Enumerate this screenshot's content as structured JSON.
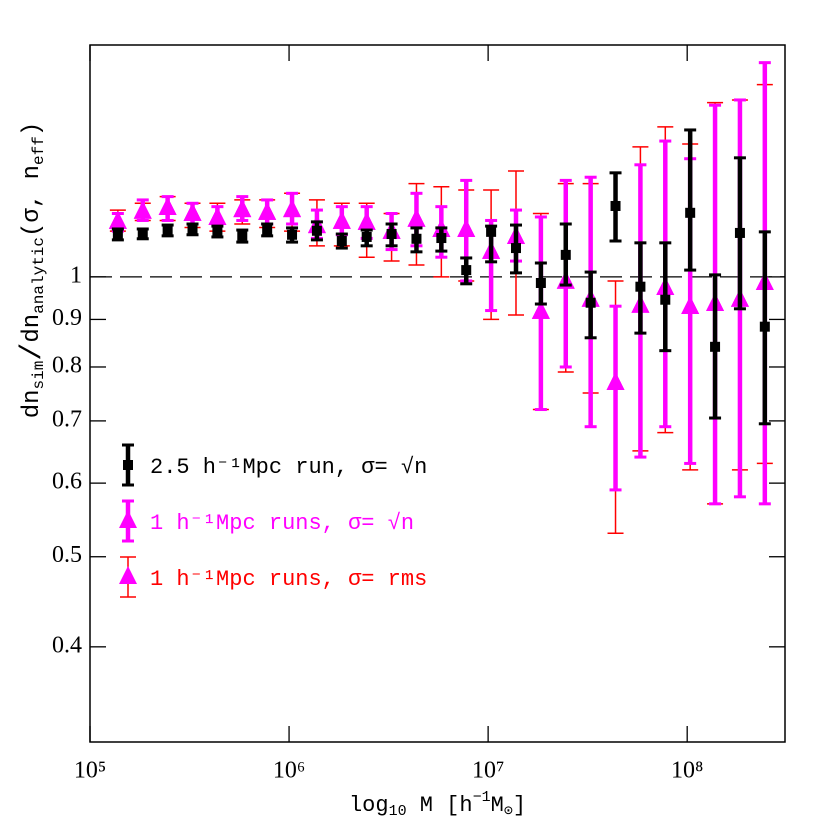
{
  "chart_data": {
    "type": "errorbar_scatter",
    "xlabel": [
      "log",
      "10",
      " M [h",
      "−1",
      "M",
      "⊙",
      "]"
    ],
    "ylabel": [
      "dn",
      "sim",
      "/",
      "dn",
      "analytic",
      "(σ, n",
      "eff",
      ")"
    ],
    "xscale": "log",
    "yscale": "log",
    "xlim": [
      100000,
      310000000
    ],
    "ylim": [
      0.316,
      1.776
    ],
    "xticks": [
      {
        "value": 100000,
        "label": "10⁵"
      },
      {
        "value": 1000000,
        "label": "10⁶"
      },
      {
        "value": 10000000,
        "label": "10⁷"
      },
      {
        "value": 100000000,
        "label": "10⁸"
      }
    ],
    "yticks": [
      0.4,
      0.5,
      0.6,
      0.7,
      0.8,
      0.9,
      1
    ],
    "hline": 1,
    "legend": "left",
    "x": [
      138038,
      184077,
      245471,
      327341,
      436516,
      582103,
      776247,
      1035142,
      1380384,
      1840772,
      2454709,
      3273407,
      4365158,
      5821032,
      7762471,
      10351422,
      13803843,
      18407720,
      24547089,
      32734069,
      43651583,
      58210322,
      77624712,
      103514217,
      138038426,
      184077200,
      245470892
    ],
    "series": [
      {
        "name": "2.5 h⁻¹Mpc run, σ= √n",
        "color": "#000000",
        "marker": "square",
        "values": [
          1.11,
          1.112,
          1.123,
          1.126,
          1.121,
          1.107,
          1.123,
          1.11,
          1.121,
          1.093,
          1.104,
          1.112,
          1.099,
          1.101,
          1.017,
          1.118,
          1.074,
          0.985,
          1.056,
          0.938,
          1.192,
          0.976,
          0.945,
          1.172,
          0.841,
          1.115,
          0.884
        ],
        "lower": [
          1.096,
          1.099,
          1.107,
          1.11,
          1.104,
          1.09,
          1.107,
          1.09,
          1.096,
          1.074,
          1.08,
          1.08,
          1.064,
          1.066,
          0.983,
          1.038,
          1.01,
          0.935,
          0.98,
          0.86,
          1.093,
          0.87,
          0.833,
          1.017,
          0.705,
          0.924,
          0.695
        ],
        "upper": [
          1.126,
          1.126,
          1.137,
          1.14,
          1.134,
          1.123,
          1.14,
          1.129,
          1.146,
          1.112,
          1.123,
          1.14,
          1.129,
          1.129,
          1.048,
          1.134,
          1.137,
          1.035,
          1.14,
          1.012,
          1.294,
          1.088,
          1.088,
          1.439,
          1.005,
          1.343,
          1.118
        ]
      },
      {
        "name": "1 h⁻¹Mpc runs, σ= rms",
        "color": "#ff0000",
        "marker": "triangle",
        "values": [
          1.146,
          1.175,
          1.186,
          1.169,
          1.157,
          1.18,
          1.172,
          1.18,
          1.134,
          1.146,
          1.143,
          1.118,
          1.152,
          1.123,
          1.123,
          1.064,
          1.104,
          0.917,
          0.988,
          0.945,
          0.769,
          0.931,
          0.973,
          0.928,
          0.935,
          0.945,
          0.985
        ],
        "lower": [
          1.12,
          1.15,
          1.15,
          1.13,
          1.12,
          1.14,
          1.13,
          1.12,
          1.08,
          1.08,
          1.05,
          1.04,
          1.03,
          1.0,
          0.99,
          0.9,
          0.91,
          0.72,
          0.79,
          0.75,
          0.53,
          0.65,
          0.68,
          0.62,
          0.57,
          0.62,
          0.63
        ],
        "upper": [
          1.18,
          1.2,
          1.22,
          1.2,
          1.2,
          1.21,
          1.21,
          1.23,
          1.21,
          1.2,
          1.2,
          1.17,
          1.26,
          1.25,
          1.24,
          1.24,
          1.3,
          1.17,
          1.26,
          1.26,
          0.99,
          1.38,
          1.45,
          1.39,
          1.54,
          1.55,
          1.61
        ]
      },
      {
        "name": "1 h⁻¹Mpc runs, σ= √n",
        "color": "#ff00ff",
        "marker": "triangle",
        "values": [
          1.146,
          1.175,
          1.186,
          1.169,
          1.157,
          1.18,
          1.172,
          1.18,
          1.134,
          1.146,
          1.143,
          1.118,
          1.152,
          1.123,
          1.123,
          1.064,
          1.104,
          0.917,
          0.988,
          0.945,
          0.769,
          0.931,
          0.973,
          0.928,
          0.935,
          0.945,
          0.985
        ],
        "lower": [
          1.12,
          1.15,
          1.15,
          1.14,
          1.14,
          1.15,
          1.14,
          1.14,
          1.1,
          1.11,
          1.1,
          1.07,
          1.08,
          1.05,
          0.99,
          0.92,
          1.04,
          0.72,
          0.8,
          0.69,
          0.59,
          0.64,
          0.69,
          0.63,
          0.57,
          0.58,
          0.57
        ],
        "upper": [
          1.17,
          1.21,
          1.22,
          1.2,
          1.19,
          1.22,
          1.21,
          1.23,
          1.18,
          1.19,
          1.19,
          1.17,
          1.23,
          1.19,
          1.27,
          1.15,
          1.18,
          1.16,
          1.27,
          1.28,
          0.93,
          1.32,
          1.4,
          1.34,
          1.53,
          1.55,
          1.7
        ]
      }
    ]
  }
}
